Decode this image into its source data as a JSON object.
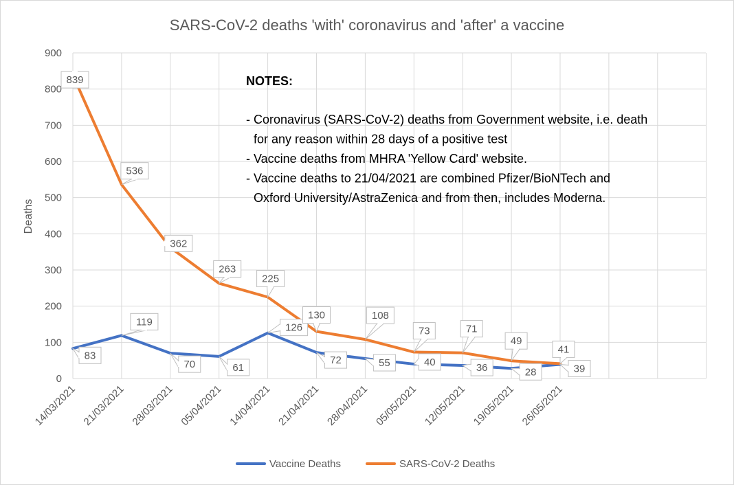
{
  "chart_data": {
    "type": "line",
    "title": "SARS-CoV-2 deaths 'with' coronavirus and 'after' a vaccine",
    "xlabel": "",
    "ylabel": "Deaths",
    "ylim": [
      0,
      900
    ],
    "yticks": [
      0,
      100,
      200,
      300,
      400,
      500,
      600,
      700,
      800,
      900
    ],
    "grid": true,
    "legend_position": "bottom",
    "categories": [
      "14/03/2021",
      "21/03/2021",
      "28/03/2021",
      "05/04/2021",
      "14/04/2021",
      "21/04/2021",
      "28/04/2021",
      "05/05/2021",
      "12/05/2021",
      "19/05/2021",
      "26/05/2021"
    ],
    "series": [
      {
        "name": "Vaccine Deaths",
        "color": "#4472c4",
        "values": [
          83,
          119,
          70,
          61,
          126,
          72,
          55,
          40,
          36,
          28,
          39
        ]
      },
      {
        "name": "SARS-CoV-2 Deaths",
        "color": "#ed7d31",
        "values": [
          839,
          536,
          362,
          263,
          225,
          130,
          108,
          73,
          71,
          49,
          41
        ]
      }
    ],
    "notes": {
      "heading": "NOTES:",
      "lines": [
        "- Coronavirus (SARS-CoV-2) deaths from Government website, i.e. death",
        "  for any reason within 28 days of a positive test",
        "- Vaccine deaths from MHRA 'Yellow Card' website.",
        "- Vaccine deaths to 21/04/2021 are combined Pfizer/BioNTech and",
        "  Oxford University/AstraZenica and from then, includes Moderna."
      ]
    }
  }
}
